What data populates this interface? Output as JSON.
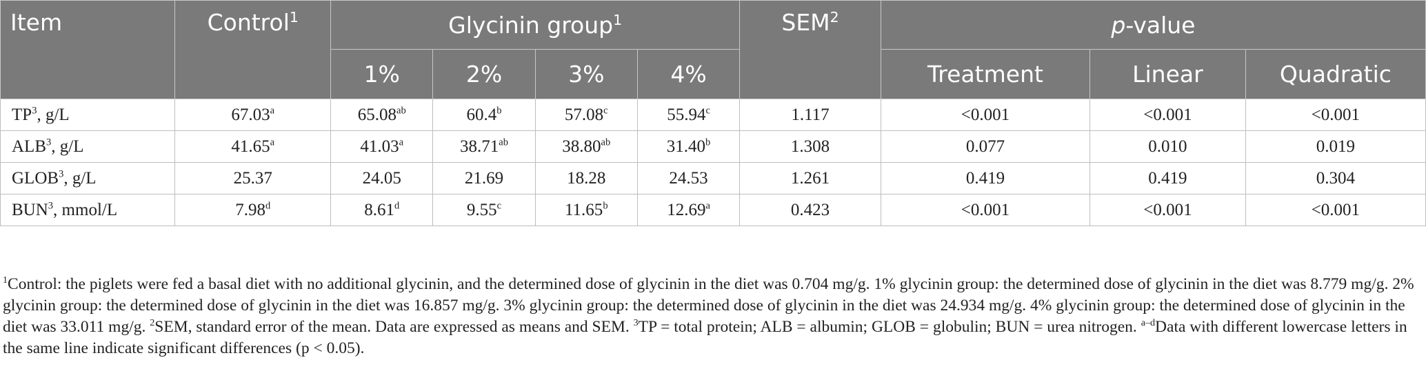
{
  "header": {
    "item": "Item",
    "control": "Control",
    "control_sup": "1",
    "group": "Glycinin group",
    "group_sup": "1",
    "sem": "SEM",
    "sem_sup": "2",
    "p_italic": "p",
    "p_rest": "-value",
    "doses": [
      "1%",
      "2%",
      "3%",
      "4%"
    ],
    "tests": [
      "Treatment",
      "Linear",
      "Quadratic"
    ]
  },
  "rows": [
    {
      "label": "TP",
      "label_sup": "3",
      "label_rest": ", g/L",
      "values": [
        [
          "67.03",
          "a"
        ],
        [
          "65.08",
          "ab"
        ],
        [
          "60.4",
          "b"
        ],
        [
          "57.08",
          "c"
        ],
        [
          "55.94",
          "c"
        ]
      ],
      "sem": "1.117",
      "p": [
        "<0.001",
        "<0.001",
        "<0.001"
      ]
    },
    {
      "label": "ALB",
      "label_sup": "3",
      "label_rest": ", g/L",
      "values": [
        [
          "41.65",
          "a"
        ],
        [
          "41.03",
          "a"
        ],
        [
          "38.71",
          "ab"
        ],
        [
          "38.80",
          "ab"
        ],
        [
          "31.40",
          "b"
        ]
      ],
      "sem": "1.308",
      "p": [
        "0.077",
        "0.010",
        "0.019"
      ]
    },
    {
      "label": "GLOB",
      "label_sup": "3",
      "label_rest": ", g/L",
      "values": [
        [
          "25.37",
          ""
        ],
        [
          "24.05",
          ""
        ],
        [
          "21.69",
          ""
        ],
        [
          "18.28",
          ""
        ],
        [
          "24.53",
          ""
        ]
      ],
      "sem": "1.261",
      "p": [
        "0.419",
        "0.419",
        "0.304"
      ]
    },
    {
      "label": "BUN",
      "label_sup": "3",
      "label_rest": ", mmol/L",
      "values": [
        [
          "7.98",
          "d"
        ],
        [
          "8.61",
          "d"
        ],
        [
          "9.55",
          "c"
        ],
        [
          "11.65",
          "b"
        ],
        [
          "12.69",
          "a"
        ]
      ],
      "sem": "0.423",
      "p": [
        "<0.001",
        "<0.001",
        "<0.001"
      ]
    }
  ],
  "footnote": {
    "n1_sup": "1",
    "n1": "Control: the piglets were fed a basal diet with no additional glycinin, and the determined dose of glycinin in the diet was 0.704 mg/g. 1% glycinin group: the determined dose of glycinin in the diet was 8.779 mg/g. 2% glycinin group: the determined dose of glycinin in the diet was 16.857 mg/g. 3% glycinin group: the determined dose of glycinin in the diet was 24.934 mg/g. 4% glycinin group: the determined dose of glycinin in the diet was 33.011 mg/g. ",
    "n2_sup": "2",
    "n2": "SEM, standard error of the mean. Data are expressed as means and SEM. ",
    "n3_sup": "3",
    "n3": "TP = total protein; ALB = albumin; GLOB = globulin; BUN = urea nitrogen. ",
    "n4_sup": "a–d",
    "n4": "Data with different lowercase letters in the same line indicate significant differences (p < 0.05)."
  }
}
